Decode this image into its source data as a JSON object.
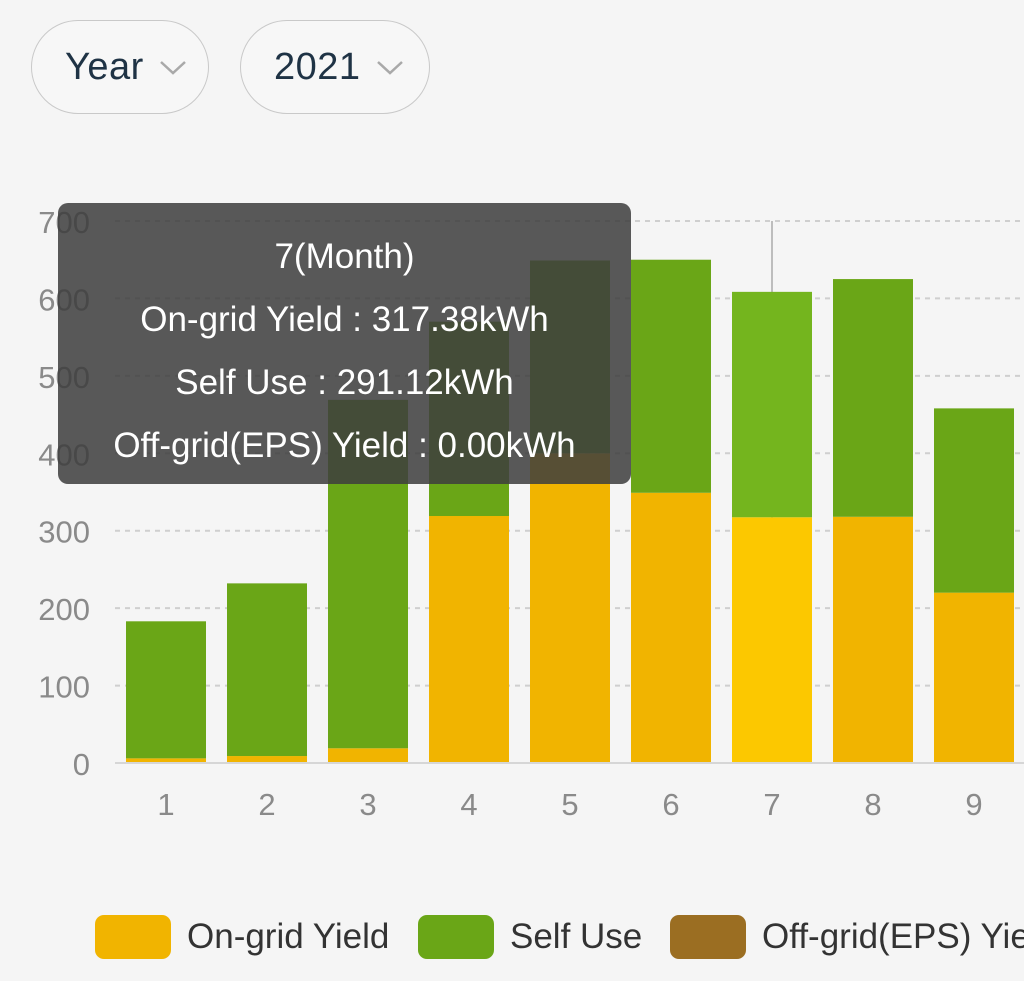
{
  "filters": {
    "period": "Year",
    "year": "2021"
  },
  "tooltip": {
    "title": "7(Month)",
    "lines": [
      "On-grid Yield : 317.38kWh",
      "Self Use : 291.12kWh",
      "Off-grid(EPS) Yield : 0.00kWh"
    ]
  },
  "legend": [
    {
      "label": "On-grid Yield",
      "color": "#f1b400"
    },
    {
      "label": "Self Use",
      "color": "#6aa617"
    },
    {
      "label": "Off-grid(EPS) Yield",
      "color": "#9b6e22"
    }
  ],
  "chart_data": {
    "type": "bar",
    "stacked": true,
    "categories": [
      "1",
      "2",
      "3",
      "4",
      "5",
      "6",
      "7",
      "8",
      "9"
    ],
    "series": [
      {
        "name": "On-grid Yield",
        "color": "#f1b400",
        "values": [
          6,
          9,
          19,
          319,
          400,
          349,
          317.38,
          318,
          220
        ]
      },
      {
        "name": "Self Use",
        "color": "#6aa617",
        "values": [
          177,
          223,
          450,
          251,
          249,
          301,
          291.12,
          307,
          238
        ]
      },
      {
        "name": "Off-grid(EPS) Yield",
        "color": "#9b6e22",
        "values": [
          0,
          0,
          0,
          0,
          0,
          0,
          0,
          0,
          0
        ]
      }
    ],
    "ylim": [
      0,
      700
    ],
    "yticks": [
      0,
      100,
      200,
      300,
      400,
      500,
      600,
      700
    ],
    "grid": true,
    "highlight_category": "7",
    "highlight_colors": {
      "On-grid Yield": "#fcc800",
      "Self Use": "#74b51e"
    },
    "legend_position": "bottom"
  }
}
